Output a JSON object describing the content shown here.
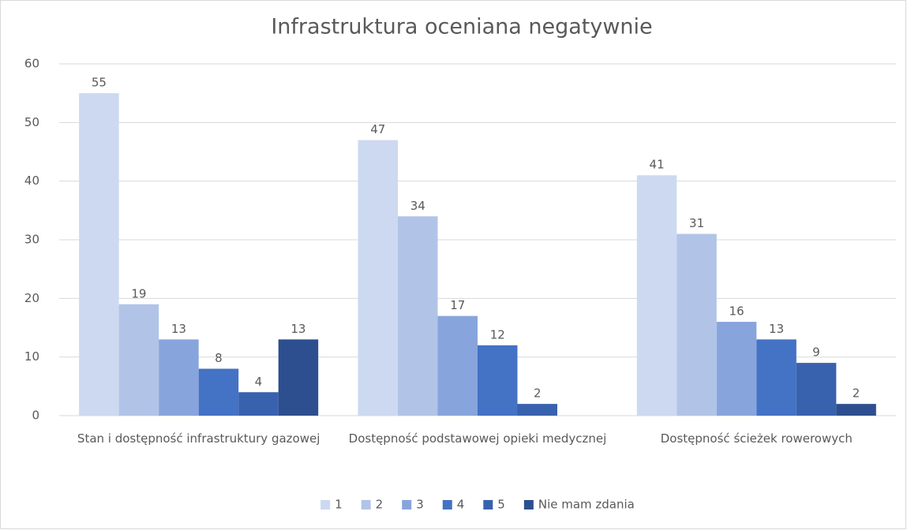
{
  "chart_data": {
    "type": "bar",
    "title": "Infrastruktura oceniana negatywnie",
    "categories": [
      "Stan i dostępność infrastruktury gazowej",
      "Dostępność podstawowej opieki medycznej",
      "Dostępność ścieżek rowerowych"
    ],
    "series": [
      {
        "name": "1",
        "color": "#cdd9f0",
        "values": [
          55,
          47,
          41
        ]
      },
      {
        "name": "2",
        "color": "#b1c4e7",
        "values": [
          19,
          34,
          31
        ]
      },
      {
        "name": "3",
        "color": "#87a5dc",
        "values": [
          13,
          17,
          16
        ]
      },
      {
        "name": "4",
        "color": "#4472c4",
        "values": [
          8,
          12,
          13
        ]
      },
      {
        "name": "5",
        "color": "#3862ae",
        "values": [
          4,
          2,
          9
        ]
      },
      {
        "name": "Nie mam zdania",
        "color": "#2e4f8f",
        "values": [
          13,
          null,
          2
        ]
      }
    ],
    "ylim": [
      0,
      60
    ],
    "yticks": [
      0,
      10,
      20,
      30,
      40,
      50,
      60
    ],
    "grid": true,
    "legend": "bottom"
  }
}
